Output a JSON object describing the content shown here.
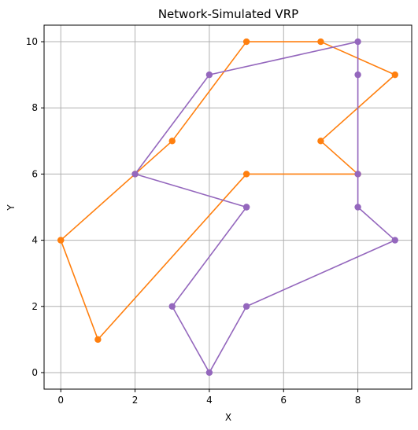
{
  "chart_data": {
    "type": "line",
    "title": "Network-Simulated VRP",
    "xlabel": "X",
    "ylabel": "Y",
    "xlim": [
      -0.45,
      9.45
    ],
    "ylim": [
      -0.5,
      10.5
    ],
    "xticks": [
      0,
      2,
      4,
      6,
      8
    ],
    "yticks": [
      0,
      2,
      4,
      6,
      8,
      10
    ],
    "grid": true,
    "markers": true,
    "series": [
      {
        "color": "#ff7f0e",
        "points": [
          [
            0,
            4
          ],
          [
            1,
            1
          ],
          [
            5,
            6
          ],
          [
            8,
            6
          ],
          [
            7,
            7
          ],
          [
            9,
            9
          ],
          [
            7,
            10
          ],
          [
            5,
            10
          ],
          [
            3,
            7
          ],
          [
            2,
            6
          ],
          [
            0,
            4
          ]
        ]
      },
      {
        "color": "#9467bd",
        "points": [
          [
            5,
            5
          ],
          [
            2,
            6
          ],
          [
            4,
            9
          ],
          [
            8,
            10
          ],
          [
            8,
            9
          ],
          [
            8,
            6
          ],
          [
            8,
            5
          ],
          [
            9,
            4
          ],
          [
            5,
            2
          ],
          [
            4,
            0
          ],
          [
            3,
            2
          ],
          [
            5,
            5
          ]
        ]
      }
    ]
  }
}
